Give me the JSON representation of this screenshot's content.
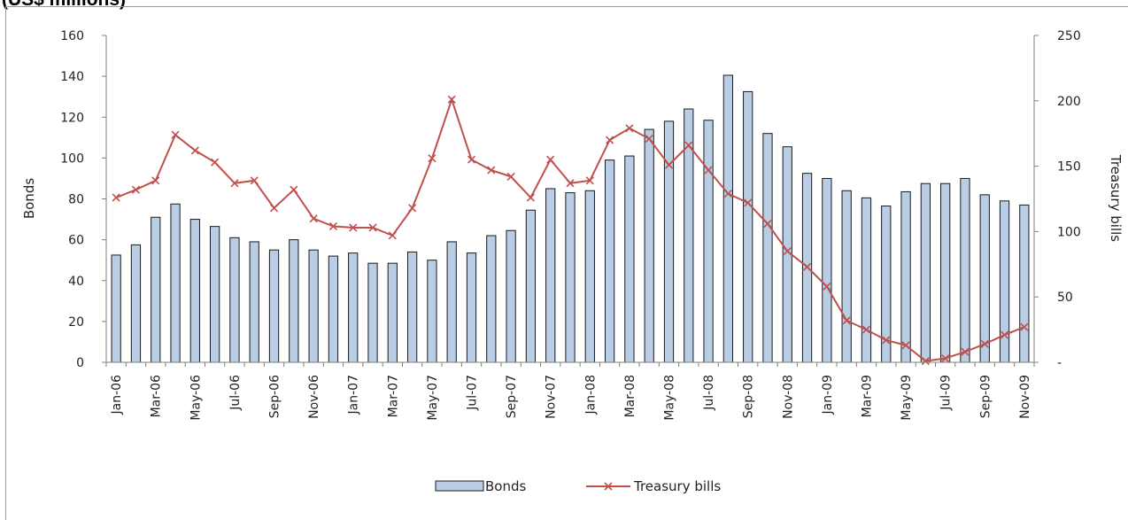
{
  "heading": "(US$ millions)",
  "chart_data": {
    "type": "bar",
    "categories": [
      "Jan-06",
      "Feb-06",
      "Mar-06",
      "Apr-06",
      "May-06",
      "Jun-06",
      "Jul-06",
      "Aug-06",
      "Sep-06",
      "Oct-06",
      "Nov-06",
      "Dec-06",
      "Jan-07",
      "Feb-07",
      "Mar-07",
      "Apr-07",
      "May-07",
      "Jun-07",
      "Jul-07",
      "Aug-07",
      "Sep-07",
      "Oct-07",
      "Nov-07",
      "Dec-07",
      "Jan-08",
      "Feb-08",
      "Mar-08",
      "Apr-08",
      "May-08",
      "Jun-08",
      "Jul-08",
      "Aug-08",
      "Sep-08",
      "Oct-08",
      "Nov-08",
      "Dec-08",
      "Jan-09",
      "Feb-09",
      "Mar-09",
      "Apr-09",
      "May-09",
      "Jun-09",
      "Jul-09",
      "Aug-09",
      "Sep-09",
      "Oct-09",
      "Nov-09"
    ],
    "series": [
      {
        "name": "Bonds",
        "type": "bar",
        "axis": "left",
        "color": "#b9cde5",
        "values": [
          52.5,
          57.5,
          71,
          77.5,
          70,
          66.5,
          61,
          59,
          55,
          60,
          55,
          52,
          53.5,
          48.5,
          48.5,
          54,
          50,
          59,
          53.5,
          62,
          64.5,
          74.5,
          85,
          83,
          84,
          99,
          101,
          114,
          118,
          124,
          118.5,
          140.5,
          132.5,
          112,
          105.5,
          92.5,
          90,
          84,
          80.5,
          76.5,
          83.5,
          87.5,
          87.5,
          90,
          82,
          79,
          77
        ]
      },
      {
        "name": "Treasury bills",
        "type": "line",
        "axis": "right",
        "color": "#c0504d",
        "values": [
          126,
          132,
          139,
          174,
          162,
          153,
          137,
          139,
          118,
          132,
          110,
          104,
          103,
          103,
          97,
          118,
          156,
          201,
          155,
          147,
          142,
          126,
          155,
          137,
          139,
          170,
          179,
          171,
          151,
          166,
          147,
          129,
          122,
          106,
          85,
          73,
          58,
          32,
          25,
          17,
          13,
          1,
          3,
          8,
          14,
          21,
          27
        ]
      }
    ],
    "xtick_labels": [
      "Jan-06",
      "Mar-06",
      "May-06",
      "Jul-06",
      "Sep-06",
      "Nov-06",
      "Jan-07",
      "Mar-07",
      "May-07",
      "Jul-07",
      "Sep-07",
      "Nov-07",
      "Jan-08",
      "Mar-08",
      "May-08",
      "Jul-08",
      "Sep-08",
      "Nov-08",
      "Jan-09",
      "Mar-09",
      "May-09",
      "Jul-09",
      "Sep-09",
      "Nov-09"
    ],
    "ylabel": "Bonds",
    "y2label": "Treasury bills",
    "ylim": [
      0,
      160
    ],
    "yticks": [
      "0",
      "20",
      "40",
      "60",
      "80",
      "100",
      "120",
      "140",
      "160"
    ],
    "y2lim": [
      0,
      250
    ],
    "y2ticks": [
      "-",
      "50",
      "100",
      "150",
      "200",
      "250"
    ],
    "grid": false,
    "legend": "bottom-center"
  }
}
